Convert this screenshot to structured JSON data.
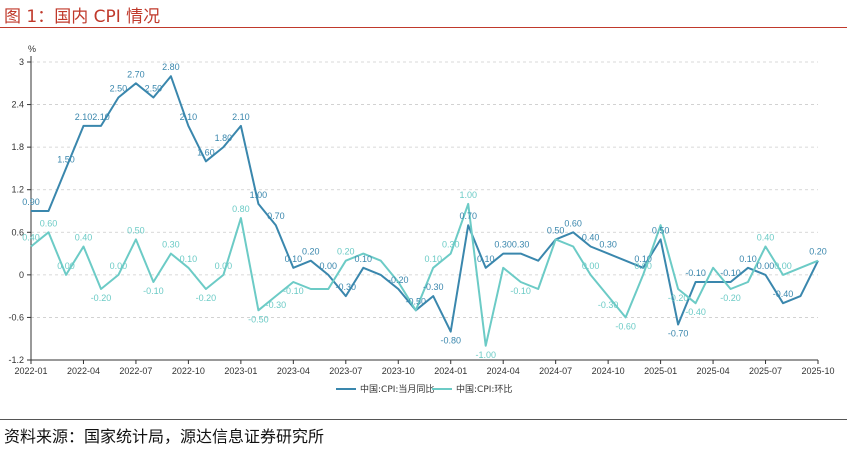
{
  "header": {
    "title": "图 1：国内 CPI 情况"
  },
  "footer": {
    "source": "资料来源：国家统计局，源达信息证券研究所"
  },
  "colors": {
    "yoy": "#3a87ad",
    "mom": "#6ccbc6",
    "title": "#c0392b",
    "grid": "#cccccc"
  },
  "chart_data": {
    "type": "line",
    "unit": "%",
    "ylim": [
      -1.2,
      3.0
    ],
    "yticks": [
      "3",
      "2.4",
      "1.8",
      "1.2",
      "0.6",
      "0",
      "-0.6",
      "-1.2"
    ],
    "ytick_values": [
      3.0,
      2.4,
      1.8,
      1.2,
      0.6,
      0,
      -0.6,
      -1.2
    ],
    "x": [
      "2022-01",
      "2022-02",
      "2022-03",
      "2022-04",
      "2022-05",
      "2022-06",
      "2022-07",
      "2022-08",
      "2022-09",
      "2022-10",
      "2022-11",
      "2022-12",
      "2023-01",
      "2023-02",
      "2023-03",
      "2023-04",
      "2023-05",
      "2023-06",
      "2023-07",
      "2023-08",
      "2023-09",
      "2023-10",
      "2023-11",
      "2023-12",
      "2024-01",
      "2024-02",
      "2024-03",
      "2024-04",
      "2024-05",
      "2024-06",
      "2024-07",
      "2024-08",
      "2024-09",
      "2024-10",
      "2024-11",
      "2024-12",
      "2025-01",
      "2025-02",
      "2025-03",
      "2025-04",
      "2025-05",
      "2025-06",
      "2025-07",
      "2025-08",
      "2025-09",
      "2025-10"
    ],
    "xticks": [
      "2022-01",
      "2022-04",
      "2022-07",
      "2022-10",
      "2023-01",
      "2023-04",
      "2023-07",
      "2023-10",
      "2024-01",
      "2024-04",
      "2024-07",
      "2024-10",
      "2025-01",
      "2025-04",
      "2025-07",
      "2025-10"
    ],
    "xtick_indices": [
      0,
      3,
      6,
      9,
      12,
      15,
      18,
      21,
      24,
      27,
      30,
      33,
      36,
      39,
      42,
      45
    ],
    "series": [
      {
        "name": "中国:CPI:当月同比",
        "color_key": "yoy",
        "values": [
          0.9,
          0.9,
          1.5,
          2.1,
          2.1,
          2.5,
          2.7,
          2.5,
          2.8,
          2.1,
          1.6,
          1.8,
          2.1,
          1.0,
          0.7,
          0.1,
          0.2,
          0.0,
          -0.3,
          0.1,
          0.0,
          -0.2,
          -0.5,
          -0.3,
          -0.8,
          0.7,
          0.1,
          0.3,
          0.3,
          0.2,
          0.5,
          0.6,
          0.4,
          0.3,
          0.2,
          0.1,
          0.5,
          -0.7,
          -0.1,
          -0.1,
          -0.1,
          0.1,
          0.0,
          -0.4,
          -0.3,
          0.2
        ],
        "labels": [
          "0.90",
          "",
          "1.50",
          "2.10",
          "2.10",
          "2.50",
          "2.70",
          "2.50",
          "2.80",
          "2.10",
          "1.60",
          "1.80",
          "2.10",
          "1.00",
          "0.70",
          "0.10",
          "0.20",
          "0.00",
          "-0.30",
          "0.10",
          "",
          "-0.20",
          "-0.50",
          "-0.30",
          "-0.80",
          "0.70",
          "0.10",
          "0.30",
          "0.30",
          "",
          "0.50",
          "0.60",
          "0.40",
          "0.30",
          "",
          "0.10",
          "0.50",
          "-0.70",
          "-0.10",
          "",
          "-0.10",
          "0.10",
          "0.00",
          "-0.40",
          "",
          "0.20"
        ]
      },
      {
        "name": "中国:CPI:环比",
        "color_key": "mom",
        "values": [
          0.4,
          0.6,
          0.0,
          0.4,
          -0.2,
          0.0,
          0.5,
          -0.1,
          0.3,
          0.1,
          -0.2,
          0.0,
          0.8,
          -0.5,
          -0.3,
          -0.1,
          -0.2,
          -0.2,
          0.2,
          0.3,
          0.2,
          -0.1,
          -0.5,
          0.1,
          0.3,
          1.0,
          -1.0,
          0.1,
          -0.1,
          -0.2,
          0.5,
          0.4,
          0.0,
          -0.3,
          -0.6,
          0.0,
          0.7,
          -0.2,
          -0.4,
          0.1,
          -0.2,
          -0.1,
          0.4,
          0.0,
          0.1,
          0.2
        ],
        "labels": [
          "0.40",
          "0.60",
          "0.00",
          "0.40",
          "-0.20",
          "0.00",
          "0.50",
          "-0.10",
          "0.30",
          "0.10",
          "-0.20",
          "0.00",
          "0.80",
          "-0.50",
          "-0.30",
          "-0.10",
          "",
          "",
          "0.20",
          "",
          "",
          "",
          "",
          "0.10",
          "0.30",
          "1.00",
          "-1.00",
          "",
          "-0.10",
          "",
          "",
          "",
          "0.00",
          "-0.30",
          "-0.60",
          "0.00",
          "",
          "-0.20",
          "-0.40",
          "",
          "-0.20",
          "",
          "0.40",
          "0.00",
          "",
          ""
        ]
      }
    ]
  }
}
